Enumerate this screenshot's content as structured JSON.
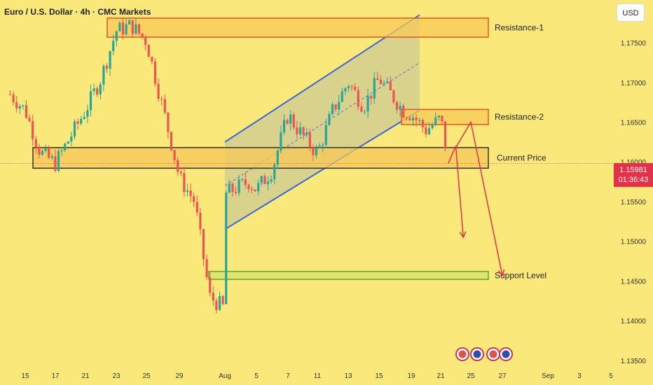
{
  "header": {
    "symbol_title": "Euro / U.S. Dollar · 4h · CMC Markets",
    "currency": "USD"
  },
  "price_tag": {
    "price": "1.15981",
    "countdown": "01:36:43"
  },
  "colors": {
    "background": "#fbe87a",
    "bull": "#26a69a",
    "bear": "#ef5350",
    "channel": "#3b67d6",
    "resistance_zone": "#e3561c",
    "price_zone": "#333333",
    "support_zone": "#5aa832",
    "arrow": "#e5304a"
  },
  "chart_data": {
    "type": "candlestick",
    "ylim": [
      1.1355,
      1.1795
    ],
    "y_ticks": [
      "1.17500",
      "1.17000",
      "1.16500",
      "1.16000",
      "1.15500",
      "1.15000",
      "1.14500",
      "1.14000",
      "1.13500"
    ],
    "y_tick_values": [
      1.175,
      1.17,
      1.165,
      1.16,
      1.155,
      1.15,
      1.145,
      1.14,
      1.135
    ],
    "x_ticks": [
      "15",
      "17",
      "21",
      "23",
      "25",
      "29",
      "Aug",
      "5",
      "7",
      "11",
      "13",
      "15",
      "19",
      "21",
      "25",
      "27",
      "Sep",
      "3",
      "5"
    ],
    "x_tick_dates": [
      "Jul 15",
      "Jul 17",
      "Jul 21",
      "Jul 23",
      "Jul 25",
      "Jul 29",
      "Aug 1",
      "Aug 5",
      "Aug 7",
      "Aug 11",
      "Aug 13",
      "Aug 15",
      "Aug 19",
      "Aug 21",
      "Aug 25",
      "Aug 27",
      "Sep 1",
      "Sep 3",
      "Sep 5"
    ],
    "close_path": [
      [
        "Jul 14",
        1.1685
      ],
      [
        "Jul 15",
        1.1665
      ],
      [
        "Jul 16",
        1.1612
      ],
      [
        "Jul 17",
        1.1598
      ],
      [
        "Jul 18",
        1.1615
      ],
      [
        "Jul 21",
        1.1665
      ],
      [
        "Jul 22",
        1.1705
      ],
      [
        "Jul 23",
        1.1765
      ],
      [
        "Jul 24",
        1.1772
      ],
      [
        "Jul 25",
        1.1752
      ],
      [
        "Jul 28",
        1.1625
      ],
      [
        "Jul 29",
        1.158
      ],
      [
        "Jul 30",
        1.155
      ],
      [
        "Jul 31",
        1.143
      ],
      [
        "Aug 1",
        1.1415
      ],
      [
        "Aug 1b",
        1.156
      ],
      [
        "Aug 4",
        1.1575
      ],
      [
        "Aug 5",
        1.1565
      ],
      [
        "Aug 6",
        1.159
      ],
      [
        "Aug 7",
        1.166
      ],
      [
        "Aug 8",
        1.1645
      ],
      [
        "Aug 11",
        1.161
      ],
      [
        "Aug 12",
        1.1665
      ],
      [
        "Aug 13",
        1.17
      ],
      [
        "Aug 14",
        1.167
      ],
      [
        "Aug 15",
        1.1705
      ],
      [
        "Aug 18",
        1.1665
      ],
      [
        "Aug 19",
        1.166
      ],
      [
        "Aug 20",
        1.164
      ],
      [
        "Aug 21",
        1.1655
      ],
      [
        "Aug 22",
        1.16
      ]
    ],
    "zones": [
      {
        "label": "Resistance-1",
        "low": 1.1757,
        "high": 1.1781
      },
      {
        "label": "Resistance-2",
        "low": 1.1647,
        "high": 1.1666
      },
      {
        "label": "Current Price",
        "low": 1.1592,
        "high": 1.1618
      },
      {
        "label": "Support Level",
        "low": 1.1452,
        "high": 1.1462
      }
    ],
    "channel": {
      "upper": [
        [
          "Aug 1",
          1.1625
        ],
        [
          "Aug 19",
          1.1785
        ]
      ],
      "lower": [
        [
          "Aug 1",
          1.1515
        ],
        [
          "Aug 19",
          1.1665
        ]
      ]
    },
    "current_price": 1.15981,
    "projections": [
      {
        "from": [
          "Aug 22",
          1.1598
        ],
        "via": [
          "Aug 23",
          1.162
        ],
        "to": [
          "Aug 24",
          1.1505
        ]
      },
      {
        "from": [
          "Aug 23",
          1.1618
        ],
        "via": [
          "Aug 25",
          1.165
        ],
        "to": [
          "Aug 27",
          1.1457
        ]
      }
    ]
  }
}
